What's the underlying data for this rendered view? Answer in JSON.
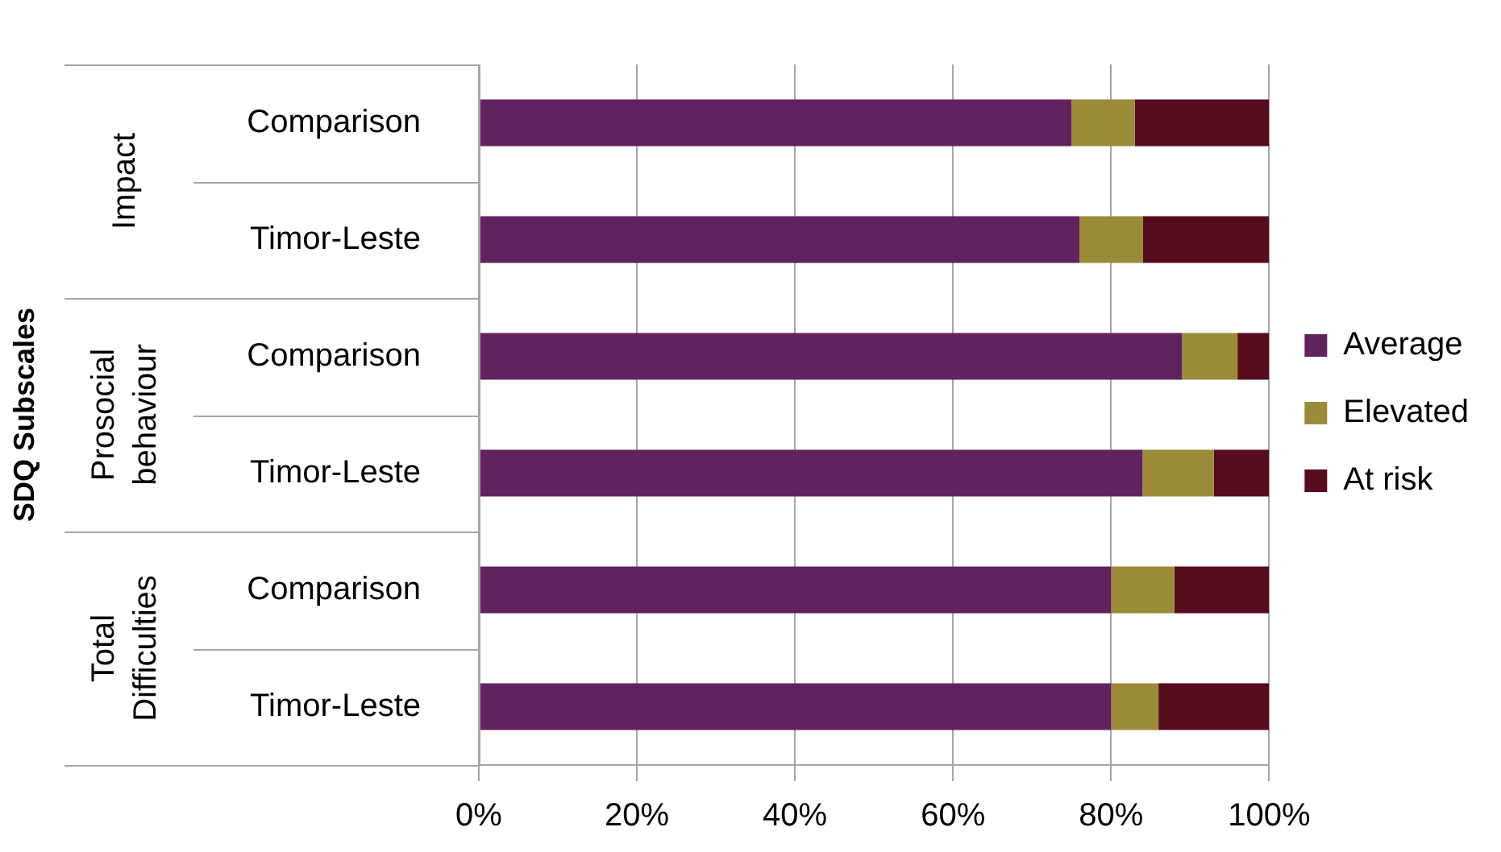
{
  "chart_data": {
    "type": "bar",
    "orientation": "horizontal",
    "stacked": true,
    "categories": [
      "Comparison",
      "Timor-Leste",
      "Comparison",
      "Timor-Leste",
      "Comparison",
      "Timor-Leste"
    ],
    "series": [
      {
        "name": "Average",
        "color": "#622260",
        "values": [
          75,
          76,
          89,
          84,
          80,
          80
        ]
      },
      {
        "name": "Elevated",
        "color": "#9a8c36",
        "values": [
          8,
          8,
          7,
          9,
          8,
          6
        ]
      },
      {
        "name": "At risk",
        "color": "#570c1d",
        "values": [
          17,
          16,
          4,
          7,
          12,
          14
        ]
      }
    ],
    "annotations": [
      "SDQ Subscales",
      "Impact",
      "Prosocial behaviour",
      "Total Difficulties"
    ],
    "xlim": [
      0,
      100
    ],
    "xticks": [
      {
        "value": 0,
        "label": "0%"
      },
      {
        "value": 20,
        "label": "20%"
      },
      {
        "value": 40,
        "label": "40%"
      },
      {
        "value": 60,
        "label": "60%"
      },
      {
        "value": 80,
        "label": "80%"
      },
      {
        "value": 100,
        "label": "100%"
      }
    ],
    "grid": "x",
    "legend": "right"
  }
}
